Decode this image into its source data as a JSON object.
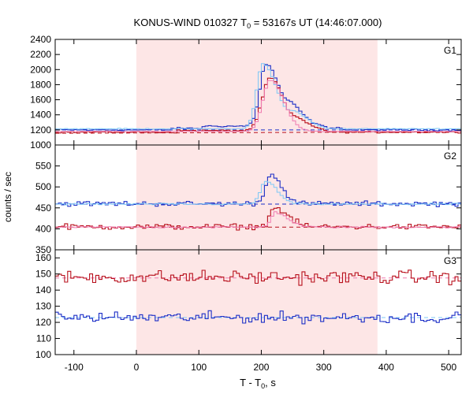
{
  "chart_data": {
    "type": "line",
    "title": "KONUS-WIND 010327 T",
    "title_sub": "0",
    "title_rest": " = 53167s UT (14:46:07.000)",
    "xlabel": "T - T",
    "xlabel_sub": "0",
    "xlabel_rest": ", s",
    "ylabel": "counts / sec",
    "xlim": [
      -130,
      520
    ],
    "xticks": [
      -100,
      0,
      100,
      200,
      300,
      400,
      500
    ],
    "highlight_interval": [
      0,
      386
    ],
    "highlight_color": "#fde6e6",
    "grid": false,
    "panels": [
      {
        "name": "G1",
        "ylim": [
          1000,
          2400
        ],
        "yticks": [
          1000,
          1200,
          1400,
          1600,
          1800,
          2000,
          2200,
          2400
        ],
        "series": [
          {
            "color": "#1c2fc7",
            "style": "step",
            "profile": "g1_blue"
          },
          {
            "color": "#b8101c",
            "style": "step",
            "profile": "g1_red"
          },
          {
            "color": "#7ec8f5",
            "style": "step",
            "profile": "g1_blue_model"
          },
          {
            "color": "#f07ab0",
            "style": "step",
            "profile": "g1_red_model"
          }
        ],
        "backgrounds": [
          {
            "color": "#1c2fc7",
            "y0": 1200,
            "y1": 1200
          },
          {
            "color": "#b8101c",
            "y0": 1155,
            "y1": 1175
          }
        ]
      },
      {
        "name": "G2",
        "ylim": [
          350,
          600
        ],
        "yticks": [
          350,
          400,
          450,
          500,
          550
        ],
        "series": [
          {
            "color": "#1c2fc7",
            "style": "step",
            "profile": "g2_blue"
          },
          {
            "color": "#b8101c",
            "style": "step",
            "profile": "g2_red"
          },
          {
            "color": "#7ec8f5",
            "style": "step",
            "profile": "g2_blue_model"
          },
          {
            "color": "#f07ab0",
            "style": "step",
            "profile": "g2_red_model"
          }
        ],
        "backgrounds": [
          {
            "color": "#1c2fc7",
            "y0": 459,
            "y1": 459
          },
          {
            "color": "#b8101c",
            "y0": 404,
            "y1": 404
          }
        ]
      },
      {
        "name": "G3",
        "ylim": [
          100,
          165
        ],
        "yticks": [
          100,
          110,
          120,
          130,
          140,
          150,
          160
        ],
        "series": [
          {
            "color": "#b8101c",
            "style": "step",
            "profile": "g3_red"
          },
          {
            "color": "#1c2fc7",
            "style": "step",
            "profile": "g3_blue"
          }
        ],
        "backgrounds": [
          {
            "color": "#f07ab0",
            "y0": 147.5,
            "y1": 147.5
          },
          {
            "color": "#7ec8f5",
            "y0": 123,
            "y1": 123
          }
        ]
      }
    ]
  }
}
